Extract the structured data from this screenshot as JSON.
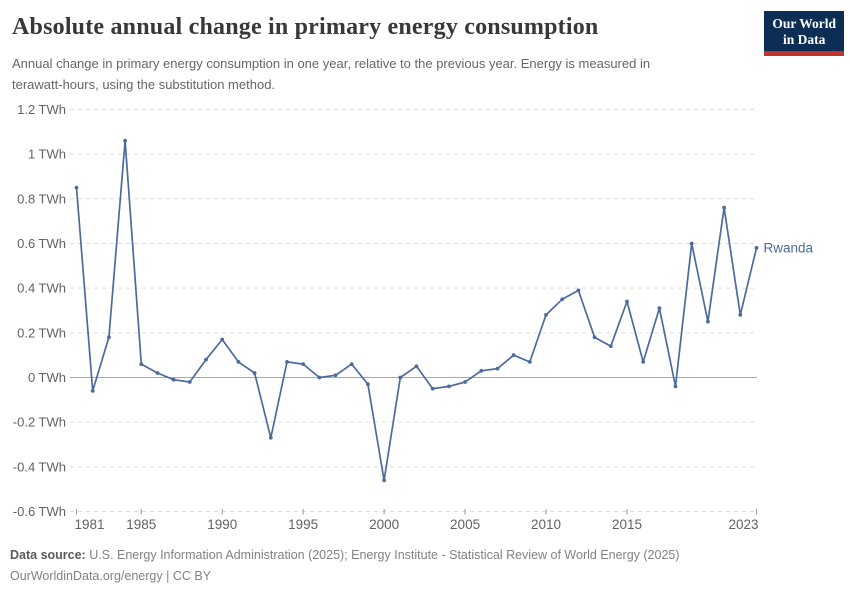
{
  "header": {
    "title": "Absolute annual change in primary energy consumption",
    "subtitle_lines": [
      "Annual change in primary energy consumption in one year, relative to the previous year. Energy is measured in",
      "terawatt-hours, using the substitution method."
    ],
    "logo": {
      "line1": "Our World",
      "line2": "in Data"
    }
  },
  "footer": {
    "source_label": "Data source:",
    "source_text": "U.S. Energy Information Administration (2025); Energy Institute - Statistical Review of World Energy (2025)",
    "url": "OurWorldinData.org/energy",
    "separator": " | ",
    "license": "CC BY"
  },
  "chart_data": {
    "type": "line",
    "title": "Absolute annual change in primary energy consumption",
    "xlabel": "",
    "ylabel": "TWh",
    "unit": "TWh",
    "grid": true,
    "ylim": [
      -0.6,
      1.2
    ],
    "xlim": [
      1981,
      2023
    ],
    "years": [
      1981,
      1982,
      1983,
      1984,
      1985,
      1986,
      1987,
      1988,
      1989,
      1990,
      1991,
      1992,
      1993,
      1994,
      1995,
      1996,
      1997,
      1998,
      1999,
      2000,
      2001,
      2002,
      2003,
      2004,
      2005,
      2006,
      2007,
      2008,
      2009,
      2010,
      2011,
      2012,
      2013,
      2014,
      2015,
      2016,
      2017,
      2018,
      2019,
      2020,
      2021,
      2022,
      2023
    ],
    "series": [
      {
        "name": "Rwanda",
        "values": [
          0.85,
          -0.06,
          0.18,
          1.06,
          0.06,
          0.02,
          -0.01,
          -0.02,
          0.08,
          0.17,
          0.07,
          0.02,
          -0.27,
          0.07,
          0.06,
          0.0,
          0.01,
          0.06,
          -0.03,
          -0.46,
          0.0,
          0.05,
          -0.05,
          -0.04,
          -0.02,
          0.03,
          0.04,
          0.1,
          0.07,
          0.28,
          0.35,
          0.39,
          0.18,
          0.14,
          0.34,
          0.07,
          0.31,
          -0.04,
          0.6,
          0.25,
          0.76,
          0.28,
          0.58
        ]
      }
    ],
    "y_ticks": [
      {
        "value": 1.2,
        "label": "1.2 TWh"
      },
      {
        "value": 1.0,
        "label": "1 TWh"
      },
      {
        "value": 0.8,
        "label": "0.8 TWh"
      },
      {
        "value": 0.6,
        "label": "0.6 TWh"
      },
      {
        "value": 0.4,
        "label": "0.4 TWh"
      },
      {
        "value": 0.2,
        "label": "0.2 TWh"
      },
      {
        "value": 0.0,
        "label": "0 TWh"
      },
      {
        "value": -0.2,
        "label": "-0.2 TWh"
      },
      {
        "value": -0.4,
        "label": "-0.4 TWh"
      },
      {
        "value": -0.6,
        "label": "-0.6 TWh"
      }
    ],
    "x_ticks": [
      {
        "value": 1981,
        "label": "1981"
      },
      {
        "value": 1985,
        "label": "1985"
      },
      {
        "value": 1990,
        "label": "1990"
      },
      {
        "value": 1995,
        "label": "1995"
      },
      {
        "value": 2000,
        "label": "2000"
      },
      {
        "value": 2005,
        "label": "2005"
      },
      {
        "value": 2010,
        "label": "2010"
      },
      {
        "value": 2015,
        "label": "2015"
      },
      {
        "value": 2023,
        "label": "2023"
      }
    ],
    "colors": {
      "line": "#4C6A9C",
      "grid": "#DCDCDC",
      "zero_line": "#A8A8A8",
      "axis_text": "#626262",
      "tick": "#999999"
    }
  }
}
